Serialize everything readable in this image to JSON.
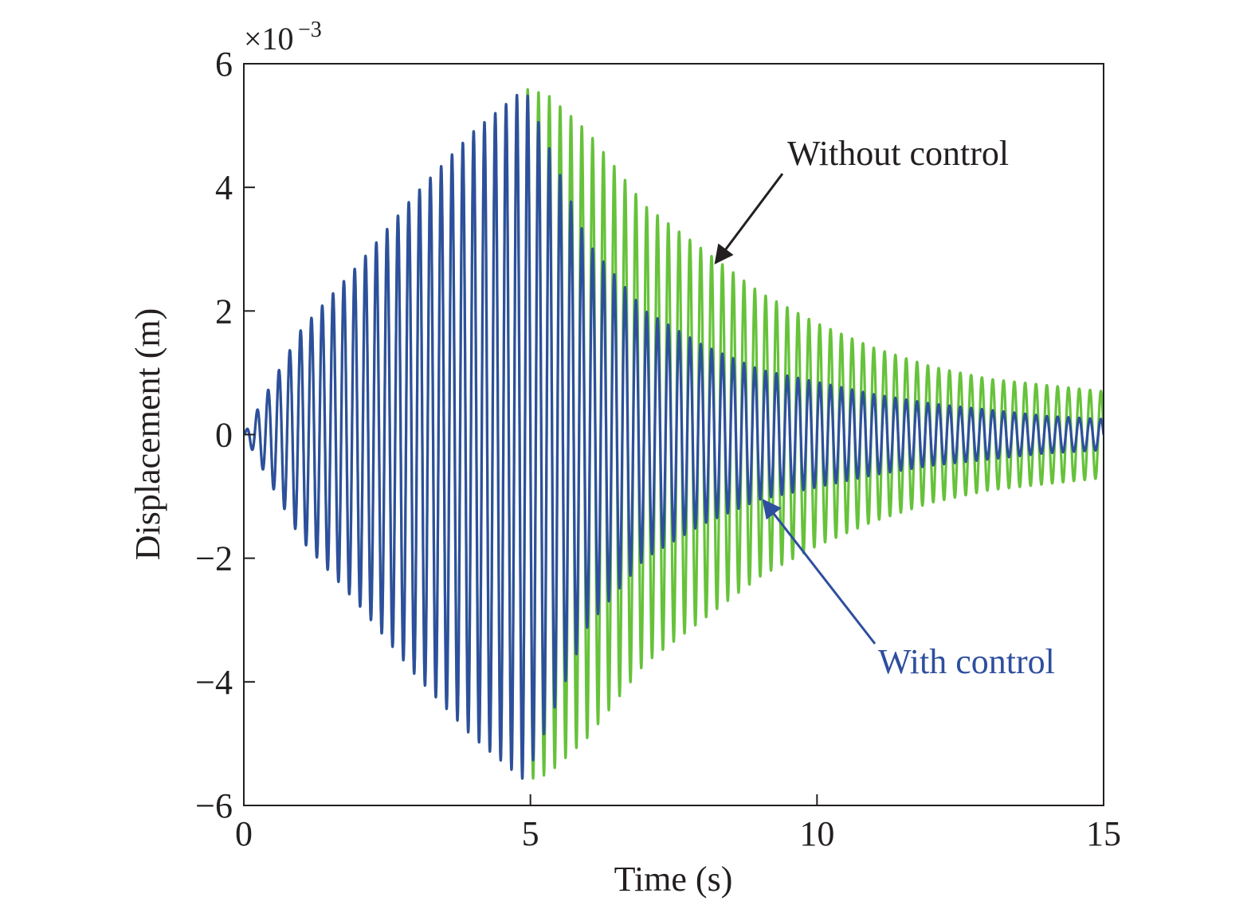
{
  "chart_data": {
    "type": "line",
    "xlabel": "Time (s)",
    "ylabel": "Displacement (m)",
    "y_multiplier": "×10",
    "y_multiplier_exponent": "−3",
    "xlim": [
      0,
      15
    ],
    "ylim": [
      -6,
      6
    ],
    "x_ticks": [
      0,
      5,
      10,
      15
    ],
    "x_tick_labels": [
      "0",
      "5",
      "10",
      "15"
    ],
    "y_ticks": [
      -6,
      -4,
      -2,
      0,
      2,
      4,
      6
    ],
    "y_tick_labels": [
      "−6",
      "−4",
      "−2",
      "0",
      "2",
      "4",
      "6"
    ],
    "grid": false,
    "series": [
      {
        "key": "without",
        "color": "#66c23a",
        "oscillation_frequency_hz": 5.3,
        "envelope": {
          "x": [
            0,
            1,
            2,
            3,
            4,
            4.9,
            5.3,
            6,
            7,
            8,
            9,
            10,
            11,
            12,
            13,
            14,
            15
          ],
          "y": [
            0,
            1.7,
            2.75,
            3.9,
            4.9,
            5.6,
            5.5,
            4.9,
            3.7,
            3.0,
            2.3,
            1.8,
            1.4,
            1.1,
            0.9,
            0.8,
            0.7
          ]
        }
      },
      {
        "key": "with",
        "color": "#2e4f9e",
        "oscillation_frequency_hz": 5.3,
        "envelope": {
          "x": [
            0,
            1,
            2,
            3,
            4,
            4.9,
            5.3,
            6,
            7,
            8,
            9,
            10,
            11,
            12,
            13,
            14,
            15
          ],
          "y": [
            0,
            1.7,
            2.75,
            3.9,
            4.9,
            5.6,
            4.7,
            3.1,
            2.0,
            1.45,
            1.05,
            0.85,
            0.65,
            0.5,
            0.4,
            0.3,
            0.25
          ]
        }
      }
    ],
    "annotations": [
      {
        "text": "Without control",
        "color": "#231f20",
        "arrow_to": [
          8.1,
          2.9
        ]
      },
      {
        "text": "With control",
        "color": "#2e4f9e",
        "arrow_to": [
          9.0,
          -1.1
        ]
      }
    ]
  }
}
